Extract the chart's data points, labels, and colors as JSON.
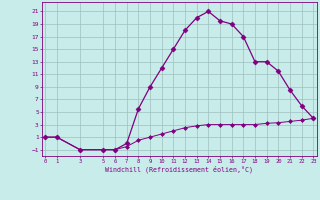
{
  "xlabel": "Windchill (Refroidissement éolien,°C)",
  "x_temp": [
    0,
    1,
    3,
    5,
    6,
    7,
    8,
    9,
    10,
    11,
    12,
    13,
    14,
    15,
    16,
    17,
    18,
    19,
    20,
    21,
    22,
    23
  ],
  "y_temp": [
    1,
    1,
    -1,
    -1,
    -1,
    0,
    5.5,
    9,
    12,
    15,
    18,
    20,
    21,
    19.5,
    19,
    17,
    13,
    13,
    11.5,
    8.5,
    6,
    4
  ],
  "x_wind": [
    0,
    1,
    3,
    5,
    6,
    7,
    8,
    9,
    10,
    11,
    12,
    13,
    14,
    15,
    16,
    17,
    18,
    19,
    20,
    21,
    22,
    23
  ],
  "y_wind": [
    1,
    1,
    -1,
    -1,
    -1,
    -0.5,
    0.5,
    1,
    1.5,
    2,
    2.5,
    2.8,
    3,
    3,
    3,
    3,
    3,
    3.2,
    3.3,
    3.5,
    3.7,
    4
  ],
  "line_color": "#800080",
  "bg_color": "#c8ecea",
  "grid_color": "#9dbfbe",
  "yticks": [
    -1,
    1,
    3,
    5,
    7,
    9,
    11,
    13,
    15,
    17,
    19,
    21
  ],
  "xticks": [
    0,
    1,
    3,
    5,
    6,
    7,
    8,
    9,
    10,
    11,
    12,
    13,
    14,
    15,
    16,
    17,
    18,
    19,
    20,
    21,
    22,
    23
  ],
  "ylim": [
    -2,
    22.5
  ],
  "xlim": [
    -0.3,
    23.3
  ]
}
